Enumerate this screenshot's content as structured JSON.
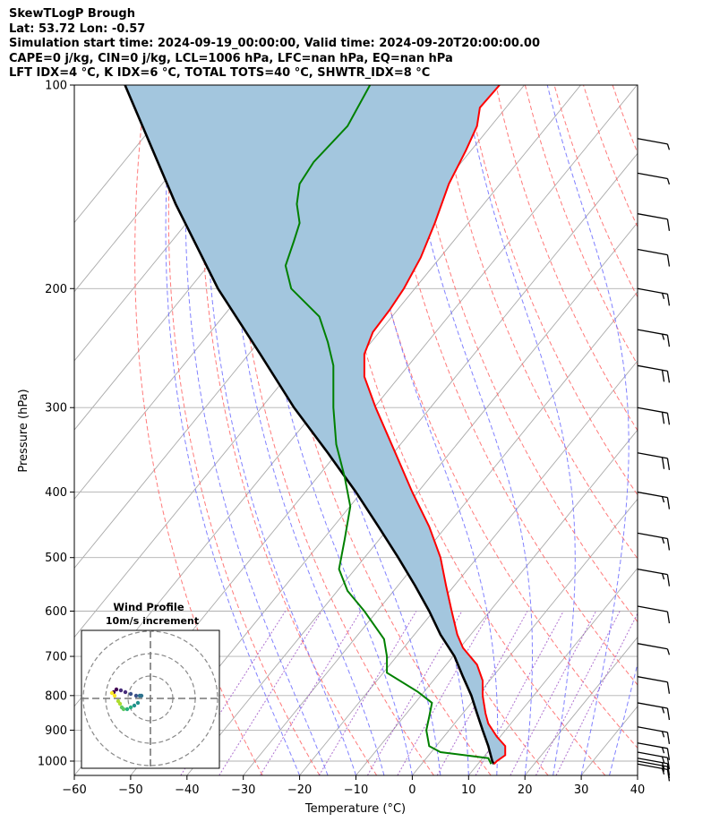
{
  "header": {
    "title": "SkewTLogP Brough",
    "location": "Lat: 53.72   Lon: -0.57",
    "times": "Simulation start time: 2024-09-19_00:00:00, Valid time: 2024-09-20T20:00:00.00",
    "indices1": "CAPE=0 j/kg, CIN=0 j/kg, LCL=1006 hPa, LFC=nan hPa, EQ=nan hPa",
    "indices2": "LFT IDX=4 °C, K IDX=6 °C, TOTAL TOTS=40 °C, SHWTR_IDX=8 °C"
  },
  "colors": {
    "temperature": "#ff0000",
    "dewpoint": "#008000",
    "parcel": "#000000",
    "shade": "#a3c6de",
    "dry_adiabat": "#ff6b6b",
    "moist_adiabat": "#6b6bff",
    "mixing_ratio": "#9b4fc4",
    "isotherm": "#aaaaaa",
    "grid": "#b0b0b0"
  },
  "chart_data": {
    "type": "line",
    "title": "SkewTLogP Brough",
    "xlabel": "Temperature (°C)",
    "ylabel": "Pressure (hPa)",
    "xlim": [
      -60,
      40
    ],
    "ylim": [
      1050,
      100
    ],
    "x_ticks": [
      "−60",
      "−50",
      "−40",
      "−30",
      "−20",
      "−10",
      "0",
      "10",
      "20",
      "30",
      "40"
    ],
    "x_tick_values": [
      -60,
      -50,
      -40,
      -30,
      -20,
      -10,
      0,
      10,
      20,
      30,
      40
    ],
    "y_ticks": [
      "100",
      "200",
      "300",
      "400",
      "500",
      "600",
      "700",
      "800",
      "900",
      "1000"
    ],
    "y_tick_values": [
      100,
      200,
      300,
      400,
      500,
      600,
      700,
      800,
      900,
      1000
    ],
    "series": [
      {
        "name": "temperature",
        "unit": "plot_x_at_pressure",
        "points": [
          [
            1010,
            14.5
          ],
          [
            1000,
            15
          ],
          [
            980,
            16.5
          ],
          [
            950,
            16.5
          ],
          [
            920,
            15
          ],
          [
            880,
            13.5
          ],
          [
            850,
            13
          ],
          [
            800,
            12.5
          ],
          [
            760,
            12.5
          ],
          [
            720,
            11.5
          ],
          [
            680,
            9
          ],
          [
            650,
            8
          ],
          [
            600,
            7
          ],
          [
            550,
            6
          ],
          [
            500,
            5
          ],
          [
            450,
            3
          ],
          [
            400,
            0
          ],
          [
            350,
            -3
          ],
          [
            300,
            -6.5
          ],
          [
            270,
            -8.5
          ],
          [
            250,
            -8.5
          ],
          [
            232,
            -7
          ],
          [
            215,
            -4
          ],
          [
            200,
            -1.5
          ],
          [
            180,
            1.5
          ],
          [
            160,
            4
          ],
          [
            140,
            6.5
          ],
          [
            125,
            9.5
          ],
          [
            115,
            11.5
          ],
          [
            108,
            12
          ],
          [
            100,
            15.5
          ]
        ]
      },
      {
        "name": "dewpoint",
        "unit": "plot_x_at_pressure",
        "points": [
          [
            1010,
            14
          ],
          [
            990,
            13.5
          ],
          [
            970,
            5
          ],
          [
            950,
            3
          ],
          [
            900,
            2.5
          ],
          [
            860,
            3
          ],
          [
            820,
            3.5
          ],
          [
            790,
            1
          ],
          [
            740,
            -4.5
          ],
          [
            700,
            -4.5
          ],
          [
            660,
            -5
          ],
          [
            600,
            -8.5
          ],
          [
            560,
            -11.5
          ],
          [
            520,
            -13
          ],
          [
            470,
            -12
          ],
          [
            420,
            -11
          ],
          [
            380,
            -12
          ],
          [
            340,
            -13.5
          ],
          [
            300,
            -14
          ],
          [
            260,
            -14
          ],
          [
            240,
            -15
          ],
          [
            220,
            -16.5
          ],
          [
            200,
            -21.5
          ],
          [
            185,
            -22.5
          ],
          [
            170,
            -21
          ],
          [
            160,
            -20
          ],
          [
            150,
            -20.5
          ],
          [
            140,
            -20
          ],
          [
            130,
            -17.5
          ],
          [
            115,
            -11.5
          ],
          [
            100,
            -7.5
          ]
        ]
      },
      {
        "name": "parcel",
        "unit": "plot_x_at_pressure",
        "points": [
          [
            1010,
            14.5
          ],
          [
            1000,
            14.2
          ],
          [
            950,
            13.5
          ],
          [
            900,
            12.5
          ],
          [
            850,
            11.5
          ],
          [
            800,
            10.5
          ],
          [
            750,
            9
          ],
          [
            700,
            7.5
          ],
          [
            650,
            5
          ],
          [
            600,
            3
          ],
          [
            550,
            0.5
          ],
          [
            500,
            -2.5
          ],
          [
            450,
            -6
          ],
          [
            400,
            -10
          ],
          [
            350,
            -15
          ],
          [
            300,
            -21
          ],
          [
            250,
            -27
          ],
          [
            200,
            -34.5
          ],
          [
            150,
            -42
          ],
          [
            100,
            -51
          ]
        ]
      }
    ],
    "wind_barbs": [
      {
        "pressure": 1010,
        "speed_kt": 15
      },
      {
        "pressure": 1000,
        "speed_kt": 15
      },
      {
        "pressure": 990,
        "speed_kt": 15
      },
      {
        "pressure": 970,
        "speed_kt": 15
      },
      {
        "pressure": 940,
        "speed_kt": 15
      },
      {
        "pressure": 890,
        "speed_kt": 15
      },
      {
        "pressure": 820,
        "speed_kt": 15
      },
      {
        "pressure": 750,
        "speed_kt": 10
      },
      {
        "pressure": 670,
        "speed_kt": 5
      },
      {
        "pressure": 590,
        "speed_kt": 10
      },
      {
        "pressure": 520,
        "speed_kt": 15
      },
      {
        "pressure": 460,
        "speed_kt": 15
      },
      {
        "pressure": 400,
        "speed_kt": 15
      },
      {
        "pressure": 350,
        "speed_kt": 20
      },
      {
        "pressure": 300,
        "speed_kt": 20
      },
      {
        "pressure": 260,
        "speed_kt": 20
      },
      {
        "pressure": 230,
        "speed_kt": 15
      },
      {
        "pressure": 200,
        "speed_kt": 15
      },
      {
        "pressure": 175,
        "speed_kt": 10
      },
      {
        "pressure": 155,
        "speed_kt": 10
      },
      {
        "pressure": 135,
        "speed_kt": 5
      },
      {
        "pressure": 120,
        "speed_kt": 5
      }
    ],
    "inset": {
      "title": "Wind Profile",
      "subtitle": "10m/s increment"
    }
  }
}
